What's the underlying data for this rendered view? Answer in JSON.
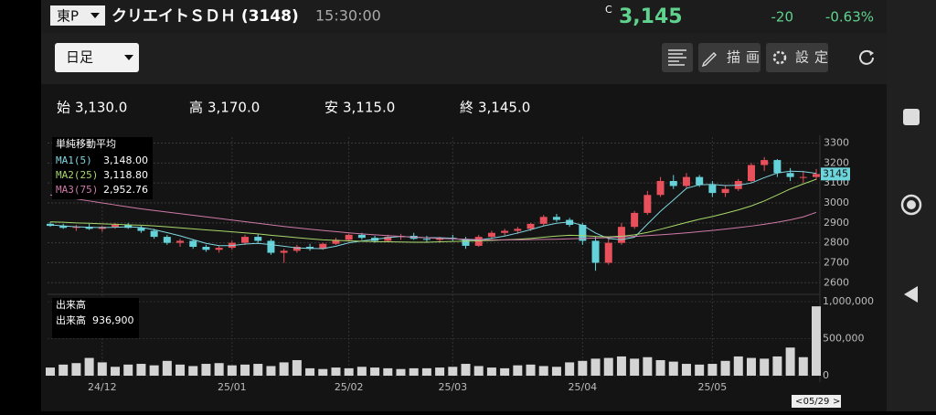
{
  "header": {
    "market": "東P",
    "name": "クリエイトＳＤＨ (3148)",
    "time": "15:30:00",
    "price_flag": "C",
    "price": "3,145",
    "change": "-20",
    "change_pct": "-0.63%",
    "period": "日足",
    "draw_button": "描画",
    "settings_button": "設定"
  },
  "ohlc_row": [
    {
      "key": "始",
      "value": "3,130.0"
    },
    {
      "key": "高",
      "value": "3,170.0"
    },
    {
      "key": "安",
      "value": "3,115.0"
    },
    {
      "key": "終",
      "value": "3,145.0"
    }
  ],
  "chart_data": [
    {
      "type": "candlestick",
      "title": "単純移動平均",
      "up_color": "#e8505b",
      "down_color": "#63d3d9",
      "last_price_label": "3145",
      "ylim": [
        2560,
        3330
      ],
      "yticks": [
        2600,
        2700,
        2800,
        2900,
        3000,
        3100,
        3200,
        3300
      ],
      "grid": true,
      "ohlc": [
        [
          2895,
          2905,
          2880,
          2885
        ],
        [
          2885,
          2895,
          2870,
          2875
        ],
        [
          2875,
          2890,
          2860,
          2880
        ],
        [
          2880,
          2895,
          2865,
          2870
        ],
        [
          2870,
          2885,
          2855,
          2880
        ],
        [
          2880,
          2900,
          2870,
          2890
        ],
        [
          2890,
          2900,
          2870,
          2875
        ],
        [
          2875,
          2885,
          2850,
          2860
        ],
        [
          2860,
          2870,
          2820,
          2830
        ],
        [
          2830,
          2840,
          2790,
          2800
        ],
        [
          2800,
          2820,
          2780,
          2810
        ],
        [
          2810,
          2815,
          2770,
          2780
        ],
        [
          2780,
          2790,
          2755,
          2765
        ],
        [
          2765,
          2785,
          2750,
          2775
        ],
        [
          2775,
          2810,
          2765,
          2800
        ],
        [
          2800,
          2840,
          2790,
          2830
        ],
        [
          2830,
          2845,
          2800,
          2810
        ],
        [
          2810,
          2820,
          2740,
          2750
        ],
        [
          2750,
          2770,
          2700,
          2760
        ],
        [
          2760,
          2790,
          2750,
          2780
        ],
        [
          2780,
          2795,
          2760,
          2770
        ],
        [
          2770,
          2800,
          2765,
          2795
        ],
        [
          2795,
          2825,
          2790,
          2815
        ],
        [
          2815,
          2845,
          2805,
          2840
        ],
        [
          2840,
          2850,
          2815,
          2825
        ],
        [
          2825,
          2835,
          2800,
          2810
        ],
        [
          2810,
          2840,
          2805,
          2830
        ],
        [
          2830,
          2845,
          2815,
          2835
        ],
        [
          2835,
          2850,
          2815,
          2820
        ],
        [
          2820,
          2835,
          2800,
          2815
        ],
        [
          2815,
          2830,
          2800,
          2825
        ],
        [
          2825,
          2840,
          2810,
          2820
        ],
        [
          2820,
          2830,
          2770,
          2785
        ],
        [
          2785,
          2840,
          2780,
          2830
        ],
        [
          2830,
          2860,
          2820,
          2850
        ],
        [
          2850,
          2870,
          2835,
          2860
        ],
        [
          2860,
          2880,
          2845,
          2870
        ],
        [
          2870,
          2900,
          2860,
          2895
        ],
        [
          2895,
          2940,
          2885,
          2930
        ],
        [
          2930,
          2945,
          2905,
          2915
        ],
        [
          2915,
          2925,
          2880,
          2890
        ],
        [
          2890,
          2900,
          2790,
          2810
        ],
        [
          2810,
          2830,
          2660,
          2700
        ],
        [
          2700,
          2820,
          2690,
          2800
        ],
        [
          2800,
          2900,
          2790,
          2880
        ],
        [
          2880,
          2960,
          2870,
          2950
        ],
        [
          2950,
          3060,
          2940,
          3040
        ],
        [
          3040,
          3130,
          3030,
          3110
        ],
        [
          3110,
          3140,
          3070,
          3085
        ],
        [
          3085,
          3150,
          3075,
          3130
        ],
        [
          3130,
          3140,
          3080,
          3090
        ],
        [
          3090,
          3110,
          3030,
          3050
        ],
        [
          3050,
          3090,
          3030,
          3070
        ],
        [
          3070,
          3120,
          3060,
          3110
        ],
        [
          3110,
          3200,
          3100,
          3190
        ],
        [
          3190,
          3230,
          3160,
          3215
        ],
        [
          3215,
          3220,
          3130,
          3150
        ],
        [
          3150,
          3175,
          3110,
          3130
        ],
        [
          3130,
          3160,
          3100,
          3130
        ],
        [
          3130,
          3170,
          3115,
          3145
        ]
      ],
      "series": [
        {
          "name": "MA1(5)",
          "legend_value": "3,148.00",
          "color": "#7fd6e0",
          "values": [
            2890,
            2885,
            2880,
            2878,
            2876,
            2878,
            2880,
            2877,
            2866,
            2851,
            2835,
            2816,
            2797,
            2786,
            2786,
            2794,
            2797,
            2791,
            2783,
            2774,
            2772,
            2771,
            2783,
            2800,
            2809,
            2817,
            2826,
            2832,
            2828,
            2826,
            2825,
            2823,
            2813,
            2815,
            2823,
            2834,
            2849,
            2866,
            2885,
            2898,
            2905,
            2888,
            2849,
            2821,
            2816,
            2828,
            2894,
            2958,
            3015,
            3073,
            3091,
            3093,
            3087,
            3089,
            3100,
            3127,
            3150,
            3159,
            3157,
            3148
          ]
        },
        {
          "name": "MA2(25)",
          "legend_value": "3,118.80",
          "color": "#a8d86a",
          "values": [
            2905,
            2903,
            2900,
            2898,
            2895,
            2893,
            2890,
            2888,
            2885,
            2880,
            2875,
            2870,
            2865,
            2860,
            2855,
            2850,
            2845,
            2838,
            2832,
            2826,
            2820,
            2815,
            2812,
            2810,
            2808,
            2806,
            2805,
            2804,
            2803,
            2803,
            2805,
            2807,
            2808,
            2810,
            2812,
            2815,
            2818,
            2822,
            2828,
            2834,
            2838,
            2836,
            2832,
            2830,
            2833,
            2840,
            2852,
            2868,
            2885,
            2902,
            2918,
            2932,
            2948,
            2965,
            2985,
            3010,
            3040,
            3070,
            3095,
            3118.8
          ]
        },
        {
          "name": "MA3(75)",
          "legend_value": "2,952.76",
          "color": "#d07aa8",
          "values": [
            3040,
            3030,
            3020,
            3010,
            3000,
            2990,
            2980,
            2970,
            2962,
            2954,
            2946,
            2938,
            2930,
            2922,
            2914,
            2906,
            2898,
            2890,
            2882,
            2875,
            2868,
            2862,
            2856,
            2850,
            2845,
            2840,
            2836,
            2832,
            2828,
            2825,
            2822,
            2820,
            2818,
            2816,
            2815,
            2815,
            2815,
            2816,
            2817,
            2818,
            2820,
            2822,
            2824,
            2826,
            2829,
            2832,
            2836,
            2840,
            2845,
            2850,
            2856,
            2862,
            2869,
            2876,
            2884,
            2893,
            2903,
            2915,
            2930,
            2952.76
          ]
        }
      ]
    },
    {
      "type": "bar",
      "title": "出来高",
      "legend_value": "936,900",
      "categories": [
        null,
        null,
        null,
        null,
        "24/12",
        null,
        null,
        null,
        null,
        null,
        null,
        null,
        null,
        null,
        "25/01",
        null,
        null,
        null,
        null,
        null,
        null,
        null,
        null,
        "25/02",
        null,
        null,
        null,
        null,
        null,
        null,
        null,
        "25/03",
        null,
        null,
        null,
        null,
        null,
        null,
        null,
        null,
        null,
        "25/04",
        null,
        null,
        null,
        null,
        null,
        null,
        null,
        null,
        null,
        "25/05",
        null,
        null,
        null,
        null,
        null,
        null,
        null,
        "05/29"
      ],
      "ylim": [
        0,
        1000000
      ],
      "yticks": [
        0,
        {
          "value": 500000,
          "label": "500,000"
        },
        {
          "value": 1000000,
          "label": "1,000,000"
        }
      ],
      "series": [
        {
          "name": "出来高",
          "color": "#d4d4d4",
          "values": [
            110000,
            150000,
            170000,
            240000,
            180000,
            120000,
            150000,
            160000,
            140000,
            200000,
            150000,
            130000,
            160000,
            170000,
            140000,
            150000,
            160000,
            130000,
            180000,
            210000,
            100000,
            90000,
            110000,
            100000,
            120000,
            110000,
            100000,
            90000,
            100000,
            100000,
            110000,
            120000,
            160000,
            130000,
            110000,
            100000,
            140000,
            150000,
            130000,
            120000,
            180000,
            200000,
            230000,
            240000,
            260000,
            230000,
            250000,
            210000,
            190000,
            160000,
            150000,
            160000,
            200000,
            260000,
            240000,
            230000,
            260000,
            380000,
            250000,
            936900
          ]
        }
      ]
    }
  ]
}
